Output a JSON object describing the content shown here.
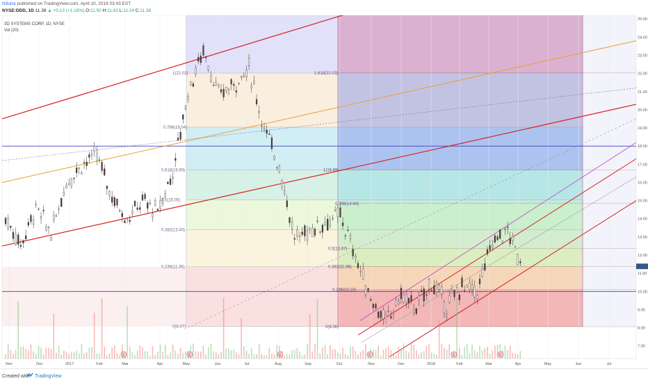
{
  "header": {
    "publisher": "N3utra",
    "publish_text": "published on TradingView.com, April 10, 2018 03:43 EST",
    "symbol": "NYSE:DDD, 1D",
    "last": "11.38",
    "change": "▲ +0.13 (+1.16%)",
    "ohlc_labels": [
      "O:",
      "H:",
      "L:",
      "C:"
    ],
    "ohlc_values": [
      "11.50",
      "11.63",
      "11.24",
      "11.38"
    ]
  },
  "footer": {
    "created_with": "Created with",
    "brand": "TradingView"
  },
  "chart_data": {
    "type": "candlestick",
    "title": "3D SYSTEMS CORP, 1D, NYSE",
    "indicator": "Vol (20)",
    "price_axis": {
      "ticks": [
        "7.00",
        "8.00",
        "9.00",
        "10.00",
        "11.00",
        "12.00",
        "13.00",
        "14.00",
        "15.00",
        "16.00",
        "17.00",
        "18.00",
        "19.00",
        "20.00",
        "21.00",
        "22.00",
        "23.00",
        "24.00",
        "25.00"
      ],
      "range": [
        6.3,
        25.2
      ],
      "last_price_label": "11.38"
    },
    "time_axis": {
      "labels": [
        "Nov",
        "Dec",
        "2017",
        "Feb",
        "Mar",
        "Apr",
        "May",
        "Jun",
        "Jul",
        "Aug",
        "Sep",
        "Oct",
        "Nov",
        "Dec",
        "2018",
        "Feb",
        "Mar",
        "Apr",
        "May",
        "Jun",
        "Jul"
      ]
    },
    "horizontal_lines": [
      18.0,
      10.0
    ],
    "fib_retracement_1": {
      "levels": [
        {
          "label": "1(22.02)",
          "value": 22.02
        },
        {
          "label": "0.786(19.04)",
          "value": 19.04
        },
        {
          "label": "0.618(16.69)",
          "value": 16.69
        },
        {
          "label": "0.5(15.05)",
          "value": 15.05
        },
        {
          "label": "0.382(13.40)",
          "value": 13.4
        },
        {
          "label": "0.236(11.36)",
          "value": 11.36
        },
        {
          "label": "0(8.07)",
          "value": 8.07
        }
      ],
      "colors": [
        "#9c9ce0",
        "#f0cfa0",
        "#7ccfe0",
        "#8fd6b6",
        "#c6ea9a",
        "#f0e0a0",
        "#f4a7a7"
      ]
    },
    "fib_retracement_2": {
      "levels": [
        {
          "label": "1.618(22.03)",
          "value": 22.03
        },
        {
          "label": "1(16.69)",
          "value": 16.69
        },
        {
          "label": "0.786(14.84)",
          "value": 14.84
        },
        {
          "label": "0.5(12.37)",
          "value": 12.37
        },
        {
          "label": "0.382(11.36)",
          "value": 11.36
        },
        {
          "label": "0.236(10.10)",
          "value": 10.1
        },
        {
          "label": "0(8.06)",
          "value": 8.06
        }
      ]
    },
    "price_path": [
      [
        "Nov",
        14.0
      ],
      [
        "Nov",
        12.6
      ],
      [
        "Dec",
        14.6
      ],
      [
        "Dec",
        13.2
      ],
      [
        "Dec",
        16.0
      ],
      [
        "2017",
        17.0
      ],
      [
        "Feb",
        17.5
      ],
      [
        "Feb",
        15.2
      ],
      [
        "Mar",
        14.0
      ],
      [
        "Mar",
        15.0
      ],
      [
        "Apr",
        14.4
      ],
      [
        "Apr",
        16.6
      ],
      [
        "May",
        21.0
      ],
      [
        "May",
        23.3
      ],
      [
        "Jun",
        20.8
      ],
      [
        "Jun",
        21.4
      ],
      [
        "Jul",
        22.3
      ],
      [
        "Jul",
        19.0
      ],
      [
        "Aug",
        16.9
      ],
      [
        "Aug",
        12.9
      ],
      [
        "Sep",
        13.4
      ],
      [
        "Sep",
        13.8
      ],
      [
        "Oct",
        14.2
      ],
      [
        "Oct",
        11.9
      ],
      [
        "Nov",
        9.6
      ],
      [
        "Nov",
        8.3
      ],
      [
        "Dec",
        9.8
      ],
      [
        "Dec",
        9.1
      ],
      [
        "2018",
        10.5
      ],
      [
        "2018",
        9.2
      ],
      [
        "Feb",
        10.3
      ],
      [
        "Feb",
        10.0
      ],
      [
        "Mar",
        12.8
      ],
      [
        "Mar",
        13.3
      ],
      [
        "Apr",
        11.3
      ]
    ]
  }
}
